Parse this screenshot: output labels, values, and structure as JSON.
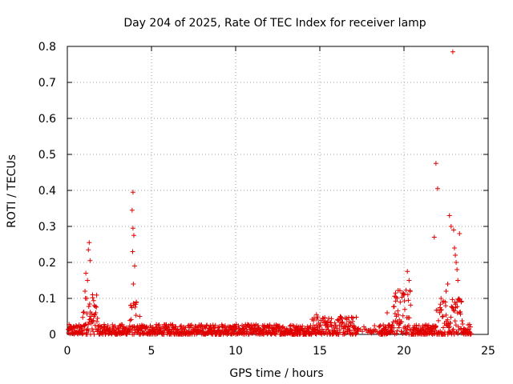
{
  "chart_data": {
    "type": "scatter",
    "title": "Day 204 of 2025, Rate Of TEC Index for receiver lamp",
    "xlabel": "GPS time / hours",
    "ylabel": "ROTI / TECUs",
    "xlim": [
      0,
      25
    ],
    "ylim": [
      0,
      0.8
    ],
    "x_ticks": [
      0,
      5,
      10,
      15,
      20,
      25
    ],
    "y_ticks": [
      0,
      0.1,
      0.2,
      0.3,
      0.4,
      0.5,
      0.6,
      0.7,
      0.8
    ],
    "x_tick_labels": [
      "0",
      "5",
      "10",
      "15",
      "20",
      "25"
    ],
    "y_tick_labels": [
      "0",
      "0.1",
      "0.2",
      "0.3",
      "0.4",
      "0.5",
      "0.6",
      "0.7",
      "0.8"
    ],
    "grid": true,
    "legend": "none",
    "marker": "+",
    "color": "#e00000",
    "series": [
      {
        "x": [
          1.1,
          1.2,
          1.3,
          1.25,
          1.35,
          1.05,
          1.15,
          1.5,
          1.6,
          3.9,
          3.85,
          3.9,
          3.95,
          3.88,
          4.0,
          3.92,
          4.1,
          4.3,
          14.8,
          19.0,
          19.5,
          19.6,
          20.2,
          20.3,
          21.8,
          21.9,
          22.0,
          22.2,
          22.3,
          22.5,
          22.6,
          22.7,
          22.8,
          22.9,
          23.0,
          23.1,
          23.2,
          23.3,
          23.4,
          22.95,
          23.05,
          23.15
        ],
        "y": [
          0.17,
          0.15,
          0.255,
          0.235,
          0.205,
          0.12,
          0.1,
          0.11,
          0.08,
          0.395,
          0.345,
          0.295,
          0.275,
          0.23,
          0.19,
          0.14,
          0.09,
          0.05,
          0.055,
          0.06,
          0.115,
          0.1,
          0.175,
          0.15,
          0.27,
          0.475,
          0.405,
          0.1,
          0.09,
          0.12,
          0.14,
          0.33,
          0.3,
          0.785,
          0.24,
          0.2,
          0.15,
          0.28,
          0.09,
          0.29,
          0.22,
          0.18
        ]
      }
    ]
  }
}
